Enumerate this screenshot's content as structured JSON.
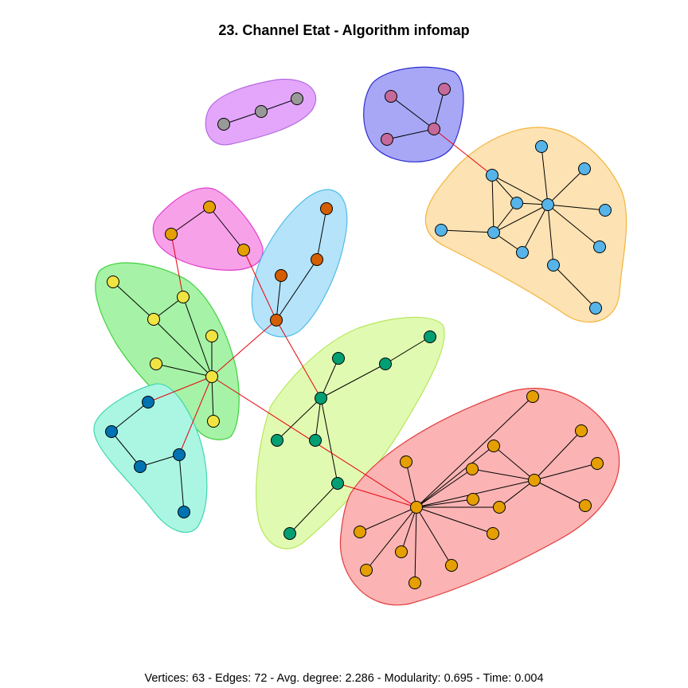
{
  "title": "23. Channel Etat - Algorithm infomap",
  "footer": "Vertices: 63 - Edges: 72 - Avg. degree: 2.286 - Modularity: 0.695 - Time: 0.004",
  "colors": {
    "intra_edge": "#000000",
    "inter_edge": "#e8000b",
    "node_stroke": "#000000"
  },
  "communities": [
    {
      "id": "purple-gray",
      "fill": "#e3a6fb",
      "stroke": "#b56ae0",
      "node_color": "#999999"
    },
    {
      "id": "blue-violet",
      "fill": "#a7a7f6",
      "stroke": "#2e2ed0",
      "node_color": "#c56a9a"
    },
    {
      "id": "orange-sky",
      "fill": "#fde2b3",
      "stroke": "#f3b53c",
      "node_color": "#56b4e9"
    },
    {
      "id": "magenta",
      "fill": "#f7a1e9",
      "stroke": "#e23fcb",
      "node_color": "#e69f00"
    },
    {
      "id": "light-blue",
      "fill": "#b5e3fa",
      "stroke": "#4fbde8",
      "node_color": "#d55e00"
    },
    {
      "id": "green",
      "fill": "#a6f2a6",
      "stroke": "#3fd13f",
      "node_color": "#f0e442"
    },
    {
      "id": "cyan",
      "fill": "#aaf6e2",
      "stroke": "#42d6b2",
      "node_color": "#0072b2"
    },
    {
      "id": "lime",
      "fill": "#e1fab1",
      "stroke": "#b4e85a",
      "node_color": "#009e73"
    },
    {
      "id": "red",
      "fill": "#fbb3b3",
      "stroke": "#e23a3a",
      "node_color": "#e69f00"
    }
  ]
}
